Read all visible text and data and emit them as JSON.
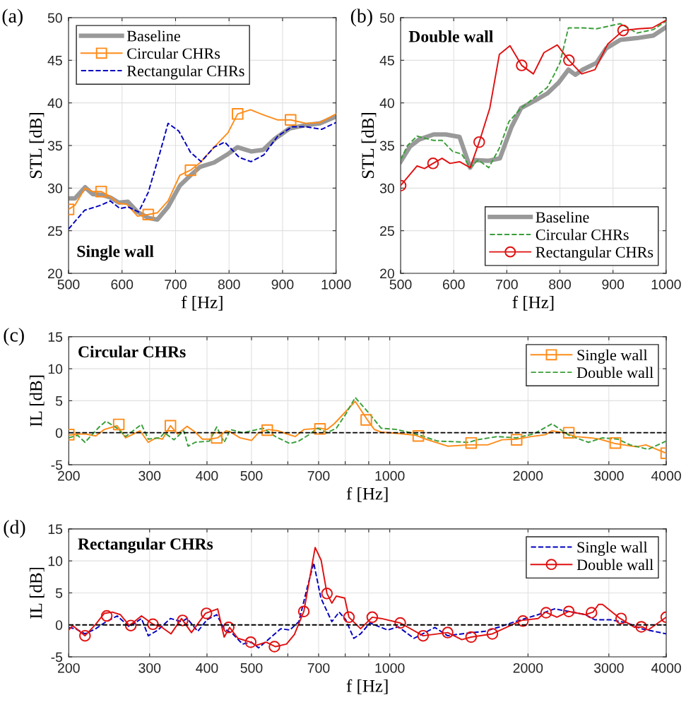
{
  "chart_data": [
    {
      "type": "line",
      "title": "(a)",
      "xlabel": "f [Hz]",
      "ylabel": "STL [dB]",
      "annotations": [
        "Single wall"
      ],
      "xlim": [
        500,
        1000
      ],
      "ylim": [
        20,
        50
      ],
      "xticks": [
        500,
        600,
        700,
        800,
        900,
        1000
      ],
      "yticks": [
        20,
        25,
        30,
        35,
        40,
        45,
        50
      ],
      "grid": true,
      "legend": "top left",
      "series": [
        {
          "name": "Baseline",
          "color": "#999999",
          "line_style": "solid",
          "x": [
            500,
            512,
            531,
            545,
            563,
            578,
            594,
            611,
            629,
            649,
            666,
            686,
            708,
            728,
            746,
            772,
            798,
            816,
            842,
            864,
            886,
            913,
            944,
            970,
            1000
          ],
          "values": [
            28.8,
            28.8,
            30.1,
            29.3,
            29.2,
            28.9,
            28.3,
            28.4,
            27.2,
            26.5,
            26.3,
            27.8,
            30.3,
            31.5,
            32.5,
            33.0,
            34.0,
            34.8,
            34.3,
            34.5,
            35.8,
            37.0,
            37.4,
            37.6,
            38.4
          ]
        },
        {
          "name": "Circular CHRs",
          "color": "#ff8c1a",
          "line_style": "solid",
          "x": [
            500,
            512,
            531,
            545,
            561,
            578,
            594,
            609,
            629,
            649,
            666,
            686,
            708,
            728,
            746,
            772,
            798,
            816,
            840,
            864,
            891,
            915,
            944,
            970,
            1000
          ],
          "values": [
            27.5,
            28.0,
            30.0,
            29.6,
            29.6,
            29.0,
            28.2,
            28.1,
            26.7,
            26.9,
            27.1,
            28.5,
            31.5,
            32.1,
            33.0,
            34.8,
            36.5,
            38.7,
            39.2,
            38.6,
            38.0,
            38.0,
            37.6,
            37.7,
            38.7
          ]
        },
        {
          "type": "scatter",
          "color": "#ff8c1a",
          "marker": "square",
          "x": [
            500,
            561,
            649,
            728,
            816,
            915
          ],
          "values": [
            27.5,
            29.6,
            26.9,
            32.1,
            38.7,
            38.0
          ]
        },
        {
          "name": "Rectangular CHRs",
          "color": "#0000c0",
          "line_style": "dashed",
          "x": [
            500,
            530,
            561,
            578,
            596,
            611,
            631,
            649,
            671,
            686,
            706,
            728,
            748,
            772,
            792,
            819,
            841,
            865,
            891,
            918,
            944,
            973,
            1000
          ],
          "values": [
            25.2,
            27.4,
            28.0,
            28.5,
            27.6,
            27.8,
            27.2,
            29.5,
            34.2,
            37.6,
            36.7,
            34.2,
            33.1,
            34.8,
            35.4,
            33.6,
            33.1,
            33.9,
            36.1,
            37.2,
            37.2,
            36.9,
            37.7
          ]
        }
      ]
    },
    {
      "type": "line",
      "title": "(b)",
      "xlabel": "f [Hz]",
      "ylabel": "STL [dB]",
      "annotations": [
        "Double wall"
      ],
      "xlim": [
        500,
        1000
      ],
      "ylim": [
        20,
        50
      ],
      "xticks": [
        500,
        600,
        700,
        800,
        900,
        1000
      ],
      "yticks": [
        20,
        25,
        30,
        35,
        40,
        45,
        50
      ],
      "grid": true,
      "legend": "bottom right",
      "series": [
        {
          "name": "Baseline",
          "color": "#999999",
          "line_style": "solid",
          "x": [
            500,
            518,
            535,
            562,
            585,
            611,
            631,
            640,
            665,
            687,
            709,
            727,
            754,
            776,
            798,
            816,
            829,
            843,
            869,
            887,
            914,
            945,
            976,
            1000
          ],
          "values": [
            33.1,
            34.9,
            35.7,
            36.3,
            36.3,
            36.0,
            32.4,
            33.3,
            33.2,
            33.5,
            37.2,
            39.4,
            40.3,
            41.1,
            42.4,
            43.9,
            43.3,
            43.9,
            44.7,
            46.4,
            47.4,
            47.6,
            47.9,
            48.9
          ]
        },
        {
          "name": "Circular CHRs",
          "color": "#3a9e3a",
          "line_style": "dashed",
          "x": [
            500,
            513,
            531,
            549,
            562,
            578,
            598,
            615,
            631,
            646,
            666,
            686,
            704,
            727,
            754,
            776,
            789,
            800,
            816,
            843,
            869,
            914,
            945,
            976,
            1000
          ],
          "values": [
            33.3,
            35.0,
            36.1,
            35.8,
            35.6,
            35.6,
            34.3,
            34.0,
            32.4,
            33.3,
            32.4,
            34.7,
            37.8,
            39.4,
            40.7,
            41.8,
            43.3,
            44.7,
            48.8,
            48.8,
            48.7,
            49.3,
            48.2,
            48.6,
            49.6
          ]
        },
        {
          "name": "Rectangular CHRs",
          "color": "#e01010",
          "line_style": "solid",
          "x": [
            500,
            531,
            545,
            561,
            578,
            593,
            611,
            631,
            648,
            668,
            686,
            706,
            728,
            750,
            770,
            795,
            817,
            841,
            866,
            890,
            919,
            948,
            974,
            1000
          ],
          "values": [
            30.3,
            32.6,
            32.3,
            32.9,
            33.5,
            32.9,
            33.1,
            32.4,
            35.4,
            39.4,
            45.7,
            46.7,
            44.4,
            43.4,
            45.9,
            46.8,
            45.0,
            43.4,
            43.9,
            46.9,
            48.5,
            48.7,
            48.8,
            49.7
          ]
        },
        {
          "type": "scatter",
          "color": "#e01010",
          "marker": "circle",
          "x": [
            500,
            561,
            648,
            728,
            817,
            919
          ],
          "values": [
            30.3,
            32.9,
            35.4,
            44.4,
            45.0,
            48.5
          ]
        }
      ]
    },
    {
      "type": "line",
      "title": "(c)",
      "xlabel": "f [Hz]",
      "ylabel": "IL [dB]",
      "annotations": [
        "Circular CHRs"
      ],
      "log": "x",
      "xlim": [
        200,
        4000
      ],
      "ylim": [
        -5,
        15
      ],
      "xticks": [
        200,
        300,
        400,
        500,
        {
          "value": 600,
          "label": null
        },
        700,
        {
          "value": 800,
          "label": null
        },
        {
          "value": 900,
          "label": null
        },
        1000,
        2000,
        3000,
        4000
      ],
      "yticks": [
        -5,
        0,
        5,
        10,
        15
      ],
      "grid": true,
      "legend": "top right",
      "ref_lines": [
        {
          "axis": "y",
          "value": 0,
          "color": "#000000",
          "line_style": "dashed"
        }
      ],
      "series": [
        {
          "name": "Single wall",
          "color": "#ff8c1a",
          "line_style": "solid",
          "x": [
            200,
            209,
            218,
            229,
            239,
            255,
            266,
            286,
            298,
            310,
            320,
            333,
            345,
            362,
            377,
            391,
            405,
            422,
            440,
            450,
            472,
            500,
            518,
            544,
            571,
            598,
            623,
            650,
            705,
            730,
            757,
            802,
            841,
            894,
            926,
            958,
            1035,
            1140,
            1198,
            1337,
            1486,
            1634,
            1757,
            1889,
            2031,
            2184,
            2256,
            2396,
            2541,
            2739,
            2866,
            3099,
            3443,
            3611,
            4000
          ],
          "values": [
            -0.4,
            -0.2,
            -0.2,
            -0.5,
            0.5,
            1.1,
            -0.8,
            0.3,
            -1.5,
            -0.8,
            -1.0,
            1.1,
            -0.2,
            1.0,
            0.1,
            -1.0,
            -1.0,
            -0.8,
            0.3,
            0.1,
            -0.8,
            -1.2,
            0.0,
            0.5,
            0.3,
            -0.2,
            -0.6,
            0.5,
            0.7,
            0.5,
            1.4,
            3.3,
            4.9,
            2.0,
            0.5,
            0.1,
            -0.1,
            -0.4,
            -1.0,
            -2.1,
            -1.9,
            -1.9,
            -1.1,
            -1.0,
            -0.6,
            -0.3,
            0.3,
            0.0,
            -0.6,
            -0.8,
            -1.0,
            -1.7,
            -2.2,
            -1.9,
            -3.2
          ]
        },
        {
          "type": "scatter",
          "color": "#ff8c1a",
          "marker": "square",
          "x": [
            200,
            257,
            333,
            420,
            541,
            705,
            889,
            1154,
            1504,
            1889,
            2454,
            3099,
            4000
          ],
          "values": [
            -0.3,
            1.3,
            1.1,
            -0.8,
            0.4,
            0.6,
            2.0,
            -0.5,
            -1.6,
            -1.1,
            0.0,
            -1.6,
            -3.2
          ]
        },
        {
          "name": "Double wall",
          "color": "#3a9e3a",
          "line_style": "dashed",
          "x": [
            200,
            209,
            217,
            233,
            241,
            255,
            266,
            288,
            298,
            316,
            323,
            339,
            356,
            364,
            377,
            405,
            420,
            436,
            450,
            478,
            500,
            530,
            564,
            606,
            634,
            664,
            697,
            730,
            765,
            802,
            841,
            905,
            958,
            1035,
            1140,
            1270,
            1486,
            1552,
            1715,
            1889,
            2055,
            2256,
            2454,
            2707,
            2906,
            3135,
            3336,
            3651,
            4000
          ],
          "values": [
            -0.8,
            -0.4,
            -1.5,
            0.9,
            1.8,
            0.7,
            -0.6,
            1.3,
            -1.0,
            -0.8,
            0.0,
            -1.1,
            0.3,
            -2.1,
            -1.5,
            -1.3,
            0.9,
            -1.5,
            0.5,
            0.0,
            0.3,
            0.7,
            -0.6,
            -1.7,
            -1.3,
            -0.4,
            0.7,
            0.0,
            0.7,
            2.9,
            5.5,
            2.9,
            0.7,
            0.5,
            -0.2,
            -1.3,
            -1.5,
            -1.1,
            -0.6,
            -0.8,
            -0.2,
            1.4,
            -0.4,
            -1.5,
            -0.8,
            -1.0,
            -1.9,
            -2.6,
            -1.3
          ]
        }
      ]
    },
    {
      "type": "line",
      "title": "(d)",
      "xlabel": "f [Hz]",
      "ylabel": "IL [dB]",
      "annotations": [
        "Rectangular CHRs"
      ],
      "log": "x",
      "xlim": [
        200,
        4000
      ],
      "ylim": [
        -5,
        15
      ],
      "xticks": [
        200,
        300,
        400,
        500,
        {
          "value": 600,
          "label": null
        },
        700,
        {
          "value": 800,
          "label": null
        },
        {
          "value": 900,
          "label": null
        },
        1000,
        2000,
        3000,
        4000
      ],
      "yticks": [
        -5,
        0,
        5,
        10,
        15
      ],
      "grid": true,
      "legend": "top right",
      "ref_lines": [
        {
          "axis": "y",
          "value": 0,
          "color": "#000000",
          "line_style": "dashed"
        }
      ],
      "series": [
        {
          "name": "Single wall",
          "color": "#0000c0",
          "line_style": "dashed",
          "x": [
            200,
            207,
            217,
            229,
            239,
            255,
            271,
            288,
            298,
            313,
            333,
            352,
            362,
            382,
            400,
            420,
            436,
            455,
            478,
            500,
            518,
            544,
            579,
            606,
            634,
            660,
            683,
            708,
            748,
            776,
            802,
            835,
            864,
            905,
            989,
            1044,
            1129,
            1254,
            1337,
            1435,
            1612,
            1736,
            1912,
            2104,
            2284,
            2454,
            2668,
            2795,
            3025,
            3293,
            3530,
            4000
          ],
          "values": [
            -0.4,
            -0.6,
            -1.4,
            -0.6,
            0.3,
            1.4,
            -0.3,
            1.0,
            -1.7,
            -0.8,
            1.0,
            0.5,
            1.0,
            -1.0,
            0.8,
            1.6,
            -0.6,
            -1.4,
            -3.0,
            -2.7,
            -3.6,
            -2.3,
            -0.6,
            -0.8,
            0.5,
            5.6,
            9.7,
            4.2,
            0.5,
            2.0,
            0.8,
            -2.1,
            -1.4,
            0.3,
            -0.8,
            -0.3,
            -2.1,
            -0.4,
            -1.7,
            -1.4,
            -1.0,
            -0.3,
            0.7,
            1.6,
            2.5,
            2.1,
            1.6,
            0.8,
            0.8,
            0.3,
            -0.6,
            -1.4
          ]
        },
        {
          "name": "Double wall",
          "color": "#e01010",
          "line_style": "solid",
          "x": [
            200,
            204,
            217,
            229,
            239,
            249,
            259,
            271,
            288,
            305,
            318,
            334,
            352,
            370,
            397,
            422,
            436,
            448,
            467,
            498,
            512,
            538,
            564,
            596,
            620,
            650,
            688,
            709,
            730,
            748,
            765,
            798,
            815,
            864,
            916,
            958,
            1054,
            1182,
            1337,
            1435,
            1504,
            1673,
            1937,
            2104,
            2184,
            2312,
            2454,
            2668,
            2771,
            2849,
            2906,
            3175,
            3416,
            3549,
            3651,
            4000
          ],
          "values": [
            -0.8,
            -0.1,
            -1.7,
            0.1,
            1.8,
            2.0,
            1.6,
            -0.1,
            1.4,
            0.1,
            -0.3,
            -1.4,
            1.0,
            -1.2,
            1.8,
            2.5,
            -1.9,
            -0.4,
            -2.1,
            -2.7,
            -3.2,
            -2.7,
            -3.4,
            -3.0,
            -1.5,
            2.1,
            12.1,
            10.1,
            4.9,
            3.4,
            4.5,
            4.2,
            1.2,
            -0.6,
            1.2,
            1.0,
            0.3,
            -1.7,
            -1.2,
            -2.3,
            -1.9,
            -1.4,
            0.7,
            1.0,
            2.0,
            1.2,
            2.1,
            1.6,
            2.0,
            3.2,
            3.2,
            1.0,
            -0.4,
            -0.3,
            -0.8,
            1.2
          ]
        },
        {
          "type": "scatter",
          "color": "#e01010",
          "marker": "circle",
          "x": [
            217,
            242,
            273,
            305,
            354,
            399,
            446,
            498,
            561,
            650,
            730,
            815,
            916,
            1054,
            1182,
            1337,
            1504,
            1673,
            1950,
            2190,
            2454,
            2750,
            3190,
            3530,
            4000
          ],
          "values": [
            -1.7,
            1.4,
            -0.1,
            0.1,
            0.7,
            1.8,
            -0.4,
            -2.7,
            -3.4,
            2.1,
            4.9,
            1.2,
            1.2,
            0.3,
            -1.7,
            -1.2,
            -1.9,
            -1.4,
            0.6,
            1.9,
            2.1,
            1.9,
            1.0,
            -0.3,
            1.2
          ]
        }
      ]
    }
  ]
}
